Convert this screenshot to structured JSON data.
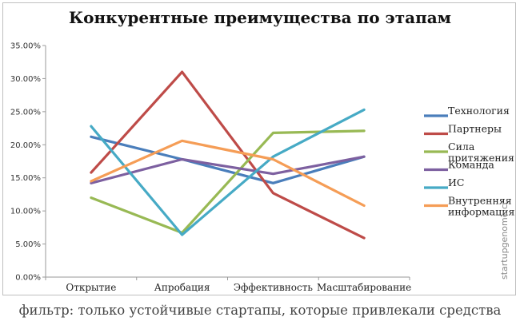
{
  "chart_data": {
    "type": "line",
    "title": "Конкурентные преимущества по этапам",
    "caption": "фильтр: только устойчивые стартапы, которые привлекали средства",
    "watermark": "startupgenome.cc",
    "categories": [
      "Открытие",
      "Апробация",
      "Эффективность",
      "Масштабирование"
    ],
    "y_ticks": [
      "0.00%",
      "5.00%",
      "10.00%",
      "15.00%",
      "20.00%",
      "25.00%",
      "30.00%",
      "35.00%"
    ],
    "ylim": [
      0,
      35
    ],
    "grid": false,
    "legend_position": "right",
    "series": [
      {
        "name": "Технология",
        "color": "#4a7ebb",
        "values": [
          21.2,
          17.8,
          14.2,
          18.2
        ]
      },
      {
        "name": "Партнеры",
        "color": "#be4b48",
        "values": [
          15.8,
          31.0,
          12.7,
          5.9
        ]
      },
      {
        "name": "Сила притяжения",
        "color": "#98b954",
        "values": [
          12.0,
          6.7,
          21.8,
          22.1
        ]
      },
      {
        "name": "Команда",
        "color": "#7d60a0",
        "values": [
          14.2,
          17.8,
          15.6,
          18.2
        ]
      },
      {
        "name": "ИС",
        "color": "#46aac5",
        "values": [
          22.8,
          6.4,
          18.2,
          25.3
        ]
      },
      {
        "name": "Внутренняя информация",
        "color": "#f59d56",
        "values": [
          14.5,
          20.6,
          17.8,
          10.8
        ]
      }
    ]
  }
}
